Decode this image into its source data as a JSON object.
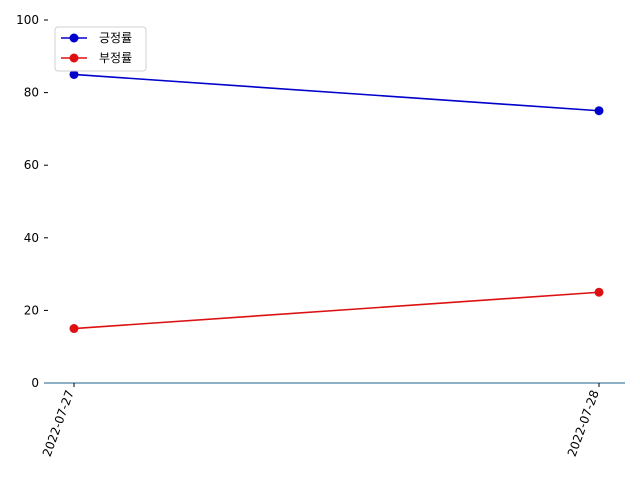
{
  "chart_data": {
    "type": "line",
    "x": [
      "2022-07-27",
      "2022-07-28"
    ],
    "series": [
      {
        "name": "긍정률",
        "values": [
          85,
          75
        ],
        "color": "#0000cc"
      },
      {
        "name": "부정률",
        "values": [
          15,
          25
        ],
        "color": "#dd1111"
      }
    ],
    "ylim": [
      0,
      100
    ],
    "yticks": [
      "0",
      "20",
      "40",
      "60",
      "80",
      "100"
    ],
    "xticks": [
      "2022-07-27",
      "2022-07-28"
    ],
    "grid": false,
    "legend_position": "top-left",
    "axis_color": "#1f5f8b",
    "title": "",
    "xlabel": "",
    "ylabel": ""
  }
}
